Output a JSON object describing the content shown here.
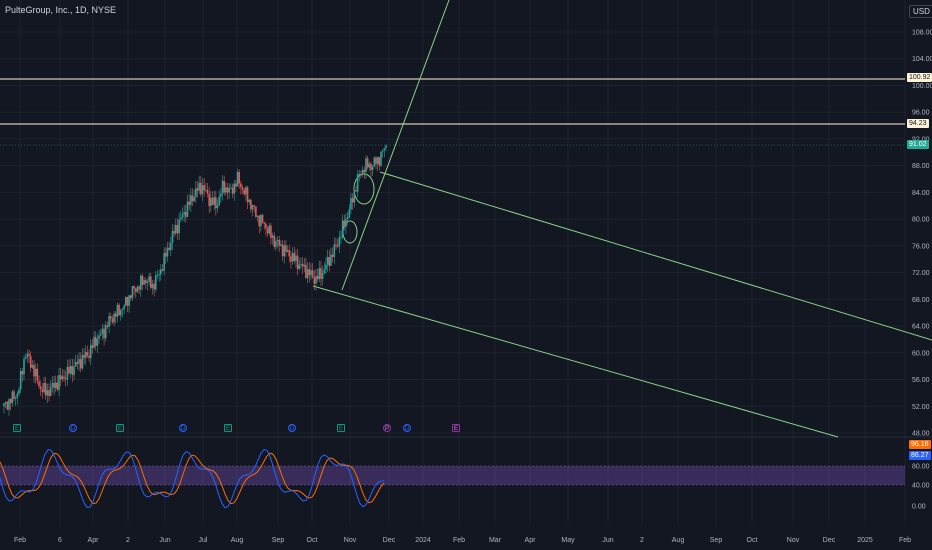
{
  "header": {
    "title": "PulteGroup, Inc., 1D, NYSE",
    "currency": "USD"
  },
  "price_tags": [
    "100.92",
    "94.23",
    "91.02",
    "96.16",
    "86.27"
  ],
  "price_axis": [
    "108.00",
    "104.00",
    "100.00",
    "96.00",
    "92.00",
    "88.00",
    "84.00",
    "80.00",
    "76.00",
    "72.00",
    "68.00",
    "64.00",
    "60.00",
    "56.00",
    "52.00",
    "48.00"
  ],
  "osc_axis": [
    "80.00",
    "40.00",
    "0.00"
  ],
  "time_axis": [
    "Feb",
    "6",
    "Apr",
    "2",
    "Jun",
    "Jul",
    "Aug",
    "Sep",
    "Oct",
    "Nov",
    "Dec",
    "2024",
    "Feb",
    "Mar",
    "Apr",
    "May",
    "Jun",
    "2",
    "Aug",
    "Sep",
    "Oct",
    "Nov",
    "Dec",
    "2025",
    "Feb"
  ],
  "events": [
    {
      "type": "E",
      "label": "E"
    },
    {
      "type": "D",
      "label": "D"
    },
    {
      "type": "E",
      "label": "E"
    },
    {
      "type": "D",
      "label": "D"
    },
    {
      "type": "E",
      "label": "E"
    },
    {
      "type": "D",
      "label": "D"
    },
    {
      "type": "E",
      "label": "E"
    },
    {
      "type": "P",
      "label": "P"
    },
    {
      "type": "D",
      "label": "D"
    },
    {
      "type": "E2",
      "label": "E"
    }
  ],
  "colors": {
    "up": "#26a69a",
    "down": "#ef5350",
    "trend": "#89d185",
    "hline": "#fff3d9",
    "band": "#7e57c2"
  },
  "chart_data": {
    "type": "candlestick",
    "close_series_approx": [
      52,
      53,
      54,
      60,
      58,
      55,
      54,
      55,
      56,
      57,
      58,
      59,
      60,
      62,
      63,
      65,
      66,
      67,
      69,
      70,
      71,
      70,
      72,
      75,
      78,
      80,
      82,
      84,
      85,
      83,
      82,
      85,
      84,
      86,
      84,
      82,
      80,
      79,
      77,
      76,
      75,
      74,
      73,
      72,
      71,
      72,
      74,
      76,
      79,
      82,
      86,
      88,
      88,
      89,
      91
    ]
  }
}
